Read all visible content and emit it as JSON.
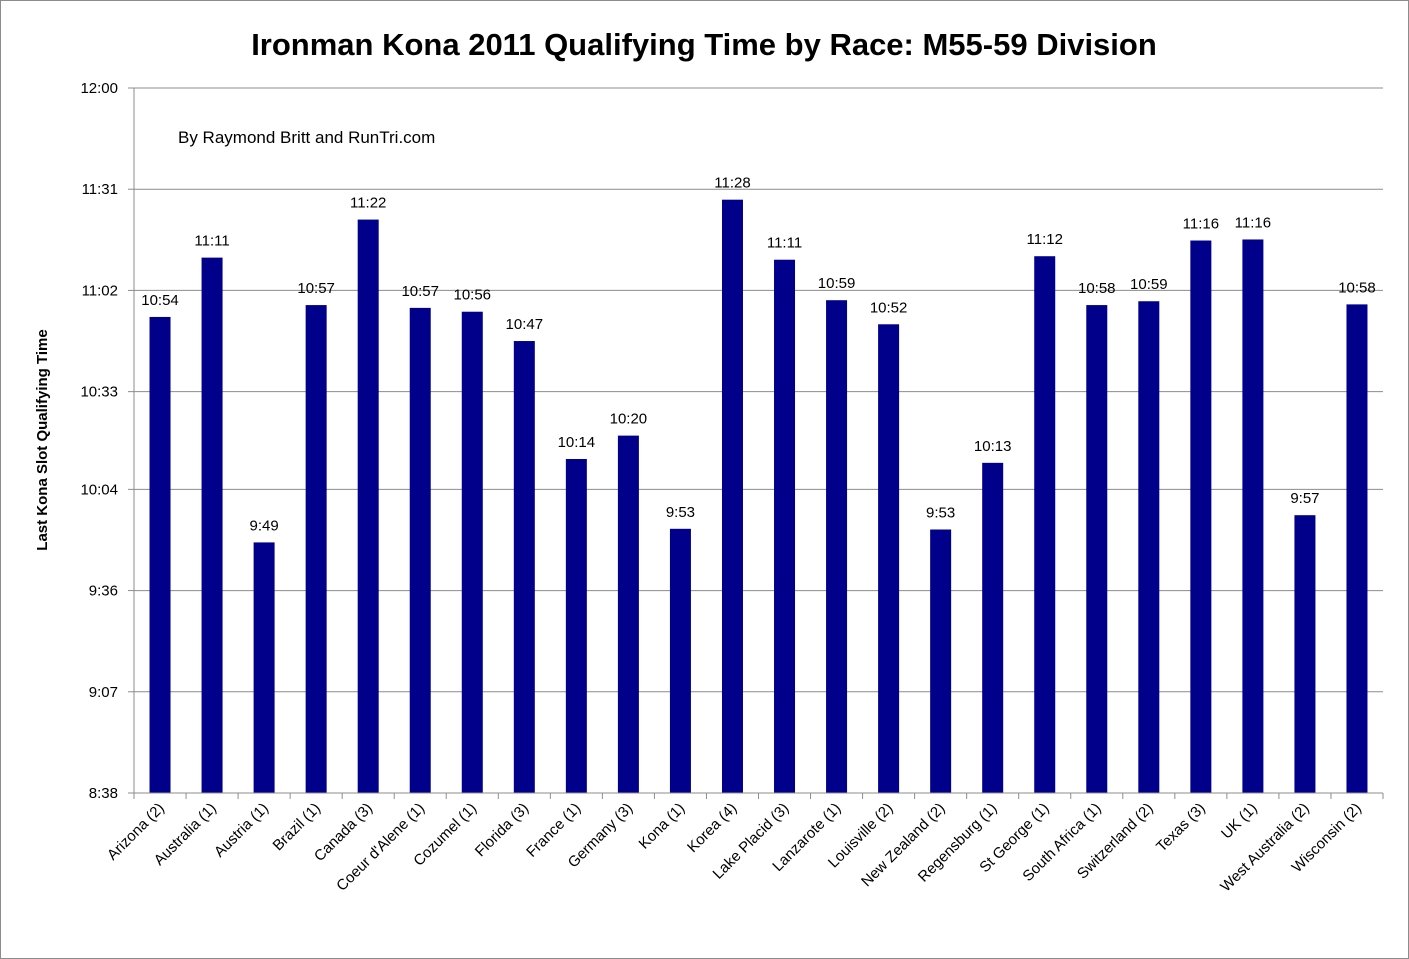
{
  "chart_data": {
    "type": "bar",
    "title": "Ironman Kona 2011 Qualifying Time by Race: M55-59 Division",
    "ylabel": "Last Kona Slot Qualifying Time",
    "xlabel": "",
    "annotation": "By Raymond Britt and RunTri.com",
    "value_unit": "minutes",
    "ylim": [
      518,
      720
    ],
    "yticks": [
      518,
      547,
      576,
      605,
      633,
      662,
      691,
      720
    ],
    "ytick_labels": [
      "8:38",
      "9:07",
      "9:36",
      "10:04",
      "10:33",
      "11:02",
      "11:31",
      "12:00"
    ],
    "categories": [
      "Arizona (2)",
      "Australia (1)",
      "Austria (1)",
      "Brazil (1)",
      "Canada (3)",
      "Coeur d'Alene (1)",
      "Cozumel (1)",
      "Florida (3)",
      "France (1)",
      "Germany (3)",
      "Kona (1)",
      "Korea (4)",
      "Lake Placid (3)",
      "Lanzarote (1)",
      "Louisville (2)",
      "New Zealand (2)",
      "Regensburg (1)",
      "St George (1)",
      "South Africa (1)",
      "Switzerland (2)",
      "Texas (3)",
      "UK (1)",
      "West Australia (2)",
      "Wisconsin (2)"
    ],
    "values": [
      654.4,
      671.4,
      589.8,
      657.8,
      682.3,
      657,
      655.9,
      647.5,
      613.7,
      620.4,
      593.7,
      688,
      670.8,
      659.2,
      652.3,
      593.5,
      612.6,
      671.8,
      657.8,
      658.9,
      676.3,
      676.6,
      597.6,
      658
    ],
    "data_labels": [
      "10:54",
      "11:11",
      "9:49",
      "10:57",
      "11:22",
      "10:57",
      "10:56",
      "10:47",
      "10:14",
      "10:20",
      "9:53",
      "11:28",
      "11:11",
      "10:59",
      "10:52",
      "9:53",
      "10:13",
      "11:12",
      "10:58",
      "10:59",
      "11:16",
      "11:16",
      "9:57",
      "10:58"
    ],
    "grid": true,
    "legend": "none",
    "colors": {
      "bar": "#00008B",
      "grid": "#8c8c8c",
      "axis": "#8c8c8c",
      "background": "#ffffff"
    }
  }
}
